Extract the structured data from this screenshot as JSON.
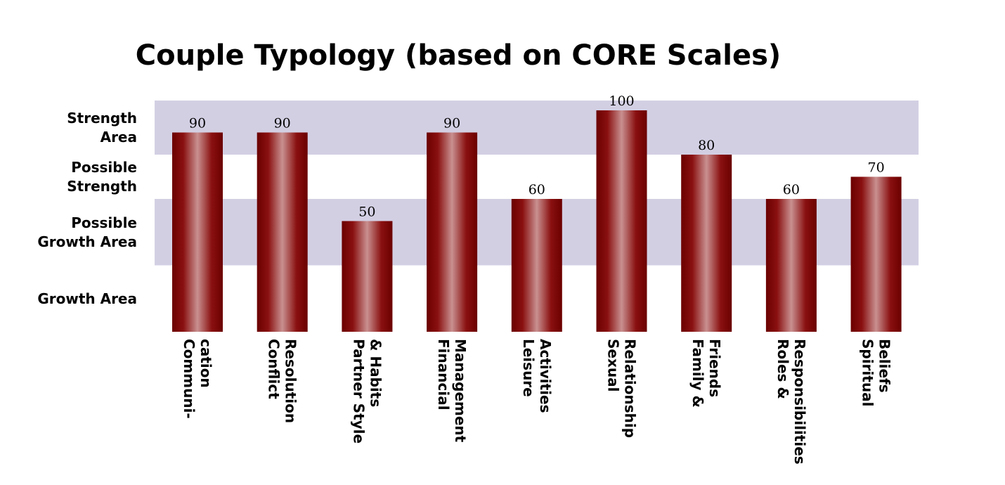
{
  "chart_data": {
    "type": "bar",
    "title": "Couple Typology (based on CORE Scales)",
    "categories": [
      [
        "Communi-",
        "cation"
      ],
      [
        "Conflict",
        "Resolution"
      ],
      [
        "Partner Style",
        "& Habits"
      ],
      [
        "Financial",
        "Management"
      ],
      [
        "Leisure",
        "Activities"
      ],
      [
        "Sexual",
        "Relationship"
      ],
      [
        "Family &",
        "Friends"
      ],
      [
        "Roles &",
        "Responsibilities"
      ],
      [
        "Spiritual",
        "Beliefs"
      ]
    ],
    "values": [
      90,
      90,
      50,
      90,
      60,
      100,
      80,
      60,
      70
    ],
    "value_labels": [
      "90",
      "90",
      "50",
      "90",
      "60",
      "100",
      "80",
      "60",
      "70"
    ],
    "ylim": [
      0,
      110
    ],
    "bands": [
      {
        "label": [
          "Strength",
          "Area"
        ],
        "from": 80,
        "to": 110,
        "shaded": true
      },
      {
        "label": [
          "Possible",
          "Strength"
        ],
        "from": 60,
        "to": 80,
        "shaded": false
      },
      {
        "label": [
          "Possible",
          "Growth Area"
        ],
        "from": 30,
        "to": 60,
        "shaded": true
      },
      {
        "label": [
          "Growth Area"
        ],
        "from": 0,
        "to": 30,
        "shaded": false
      }
    ],
    "colors": {
      "band_fill": "#d3cfe3",
      "bar_dark": "#6b0000",
      "bar_mid": "#8a1010",
      "bar_highlight": "#c99090"
    }
  }
}
